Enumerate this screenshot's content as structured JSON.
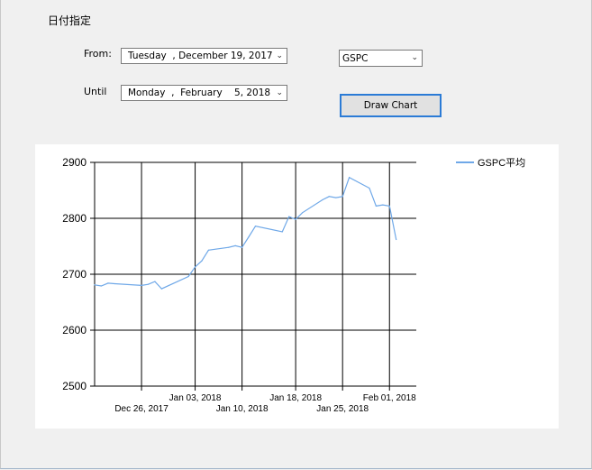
{
  "group": {
    "title": "日付指定"
  },
  "from": {
    "label": "From:",
    "value": "Tuesday  , December 19, 2017"
  },
  "until": {
    "label": "Until",
    "value": "Monday  ,  February    5, 2018"
  },
  "symbol": {
    "value": "GSPC"
  },
  "draw_button": {
    "label": "Draw Chart"
  },
  "icons": {
    "dropdown": "chevron-down-icon"
  },
  "chart_data": {
    "type": "line",
    "title": "",
    "xlabel": "",
    "ylabel": "",
    "ylim": [
      2500,
      2900
    ],
    "yticks": [
      2500,
      2600,
      2700,
      2800,
      2900
    ],
    "xlim": [
      "2017-12-19",
      "2018-02-05"
    ],
    "xticks_upper": [
      "Jan 03, 2018",
      "Jan 18, 2018",
      "Feb 01, 2018"
    ],
    "xticks_lower": [
      "Dec 26, 2017",
      "Jan 10, 2018",
      "Jan 25, 2018"
    ],
    "grid": true,
    "legend": "top-right",
    "series": [
      {
        "name": "GSPC平均",
        "color": "#6fa8e8",
        "points": [
          [
            "2017-12-19",
            2681
          ],
          [
            "2017-12-20",
            2679
          ],
          [
            "2017-12-21",
            2684
          ],
          [
            "2017-12-22",
            2683
          ],
          [
            "2017-12-26",
            2680
          ],
          [
            "2017-12-27",
            2682
          ],
          [
            "2017-12-28",
            2687
          ],
          [
            "2017-12-29",
            2674
          ],
          [
            "2018-01-02",
            2696
          ],
          [
            "2018-01-03",
            2713
          ],
          [
            "2018-01-04",
            2724
          ],
          [
            "2018-01-05",
            2743
          ],
          [
            "2018-01-08",
            2748
          ],
          [
            "2018-01-09",
            2751
          ],
          [
            "2018-01-10",
            2748
          ],
          [
            "2018-01-11",
            2767
          ],
          [
            "2018-01-12",
            2786
          ],
          [
            "2018-01-16",
            2776
          ],
          [
            "2018-01-17",
            2803
          ],
          [
            "2018-01-18",
            2798
          ],
          [
            "2018-01-19",
            2810
          ],
          [
            "2018-01-22",
            2833
          ],
          [
            "2018-01-23",
            2839
          ],
          [
            "2018-01-24",
            2837
          ],
          [
            "2018-01-25",
            2839
          ],
          [
            "2018-01-26",
            2873
          ],
          [
            "2018-01-29",
            2854
          ],
          [
            "2018-01-30",
            2822
          ],
          [
            "2018-01-31",
            2824
          ],
          [
            "2018-02-01",
            2822
          ],
          [
            "2018-02-02",
            2762
          ]
        ]
      }
    ]
  }
}
